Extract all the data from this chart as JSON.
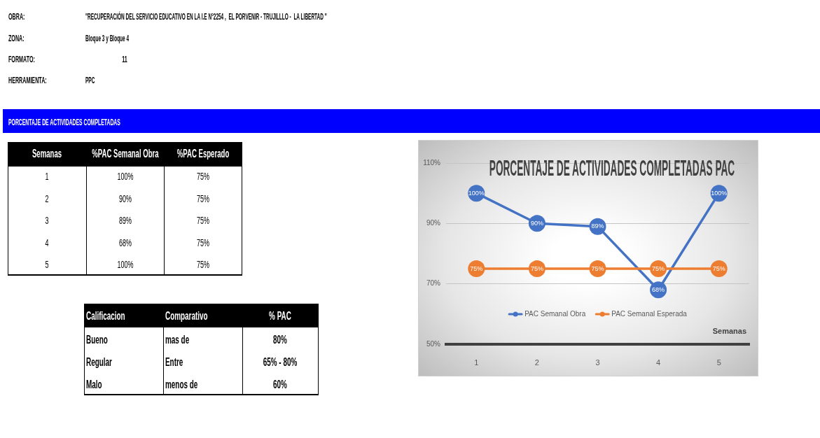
{
  "chart_data": {
    "type": "line",
    "title": "PORCENTAJE DE ACTIVIDADES COMPLETADAS PAC",
    "xlabel": "Semanas",
    "categories": [
      "1",
      "2",
      "3",
      "4",
      "5"
    ],
    "series": [
      {
        "name": "PAC Semanal Obra",
        "color": "#4472c4",
        "values": [
          100,
          90,
          89,
          68,
          100
        ],
        "value_labels": [
          "100%",
          "90%",
          "89%",
          "68%",
          "100%"
        ]
      },
      {
        "name": "PAC Semanal Esperada",
        "color": "#ed7d31",
        "values": [
          75,
          75,
          75,
          75,
          75
        ],
        "value_labels": [
          "75%",
          "75%",
          "75%",
          "75%",
          "75%"
        ]
      }
    ],
    "ylim": [
      50,
      110
    ],
    "yticks": [
      {
        "value": 50,
        "label": "50%"
      },
      {
        "value": 70,
        "label": "70%"
      },
      {
        "value": 90,
        "label": "90%"
      },
      {
        "value": 110,
        "label": "110%"
      }
    ],
    "grid": "y",
    "legend": "bottom",
    "marker": "circle",
    "annotations": [
      "OBRA:",
      "\"RECUPERACIÓN DEL SERVICIO EDUCATIVO EN LA I.E N°2254 ,  EL PORVENIR - TRUJILLLO -  LA LIBERTAD \"",
      "ZONA:",
      "Bloque 3 y Bloque 4",
      "FORMATO:",
      "11",
      "HERRAMIENTA:",
      "PPC",
      "PORCENTAJE DE ACTIVIDADES COMPLETADAS",
      "Semanas",
      "%PAC Semanal Obra",
      "%PAC Esperado",
      "Calificacion",
      "Comparativo",
      "% PAC",
      "Bueno",
      "mas de",
      "80%",
      "Regular",
      "Entre",
      "65% - 80%",
      "Malo",
      "menos de",
      "60%"
    ]
  }
}
